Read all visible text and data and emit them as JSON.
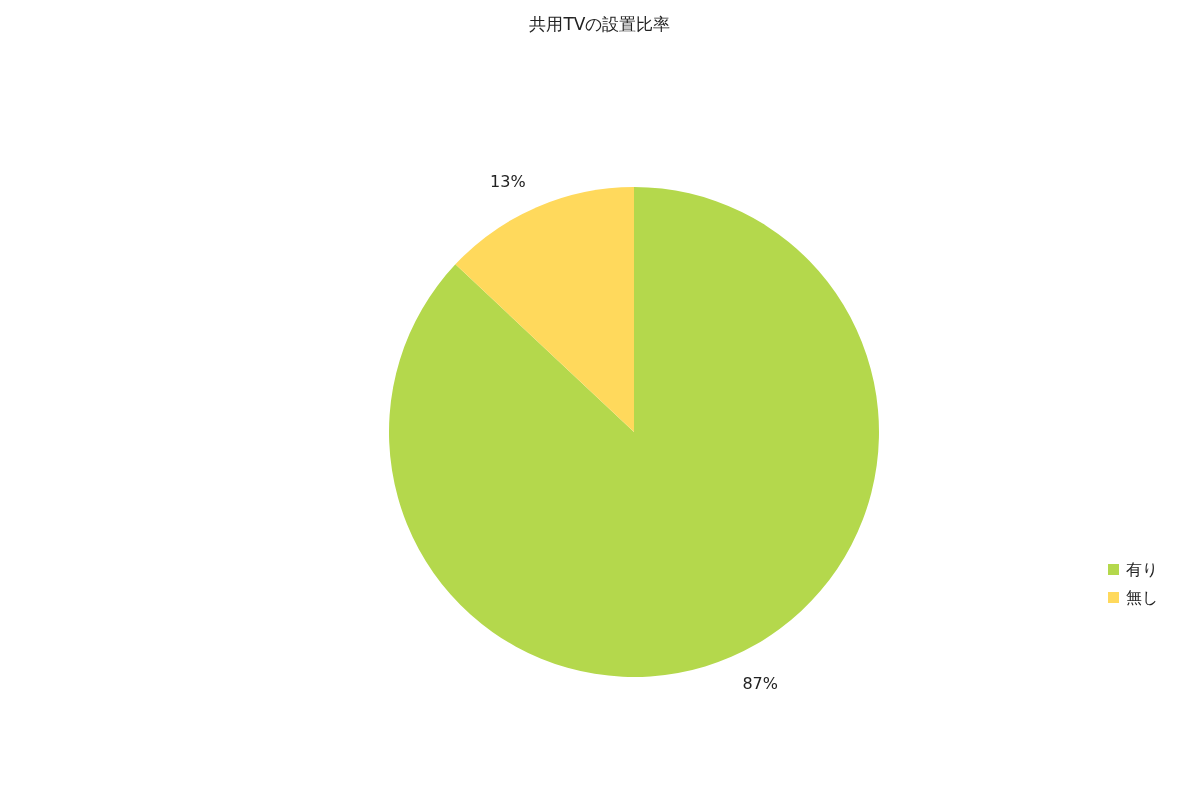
{
  "chart_data": {
    "type": "pie",
    "title": "共用TVの設置比率",
    "categories": [
      "有り",
      "無し"
    ],
    "values": [
      87,
      13
    ],
    "colors": [
      "#b4d84c",
      "#ffd95c"
    ],
    "value_labels": [
      "87%",
      "13%"
    ],
    "legend": "right"
  }
}
